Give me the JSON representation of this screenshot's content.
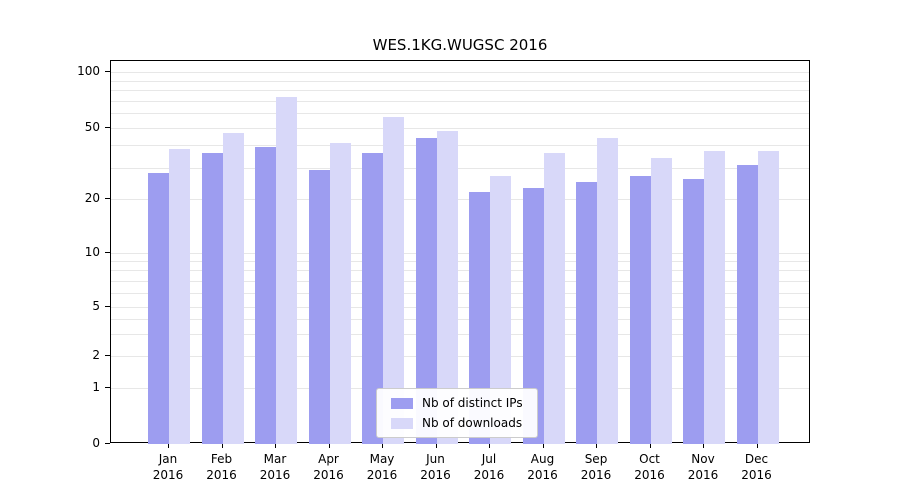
{
  "title": "WES.1KG.WUGSC 2016",
  "colors": {
    "distinct_ips": "#9d9df0",
    "downloads": "#d8d8f9",
    "grid": "#e7e7e7",
    "axis": "#000000"
  },
  "legend": {
    "items": [
      {
        "label": "Nb of distinct IPs",
        "color": "#9d9df0",
        "key": "distinct-ips"
      },
      {
        "label": "Nb of downloads",
        "color": "#d8d8f9",
        "key": "downloads"
      }
    ]
  },
  "axes": {
    "y_tick_labels": [
      "100",
      "50",
      "20",
      "10",
      "5",
      "2",
      "1",
      "0"
    ],
    "x_year": "2016"
  },
  "chart_data": {
    "type": "bar",
    "title": "WES.1KG.WUGSC 2016",
    "categories": [
      "Jan",
      "Feb",
      "Mar",
      "Apr",
      "May",
      "Jun",
      "Jul",
      "Aug",
      "Sep",
      "Oct",
      "Nov",
      "Dec"
    ],
    "x_year": "2016",
    "series": [
      {
        "name": "Nb of distinct IPs",
        "key": "distinct-ips",
        "color": "#9d9df0",
        "values": [
          28,
          36,
          39,
          29,
          36,
          44,
          22,
          23,
          25,
          27,
          26,
          31
        ]
      },
      {
        "name": "Nb of downloads",
        "key": "downloads",
        "color": "#d8d8f9",
        "values": [
          38,
          47,
          73,
          41,
          57,
          48,
          27,
          36,
          44,
          34,
          37,
          37
        ]
      }
    ],
    "yscale": "symlog",
    "yticks": [
      0,
      1,
      2,
      5,
      10,
      20,
      50,
      100
    ],
    "ylim": [
      0,
      115
    ],
    "grid": "horizontal",
    "gridline_values": [
      1,
      2,
      3,
      4,
      5,
      6,
      7,
      8,
      9,
      10,
      20,
      30,
      40,
      50,
      60,
      70,
      80,
      90,
      100
    ],
    "legend_position": "lower center"
  }
}
